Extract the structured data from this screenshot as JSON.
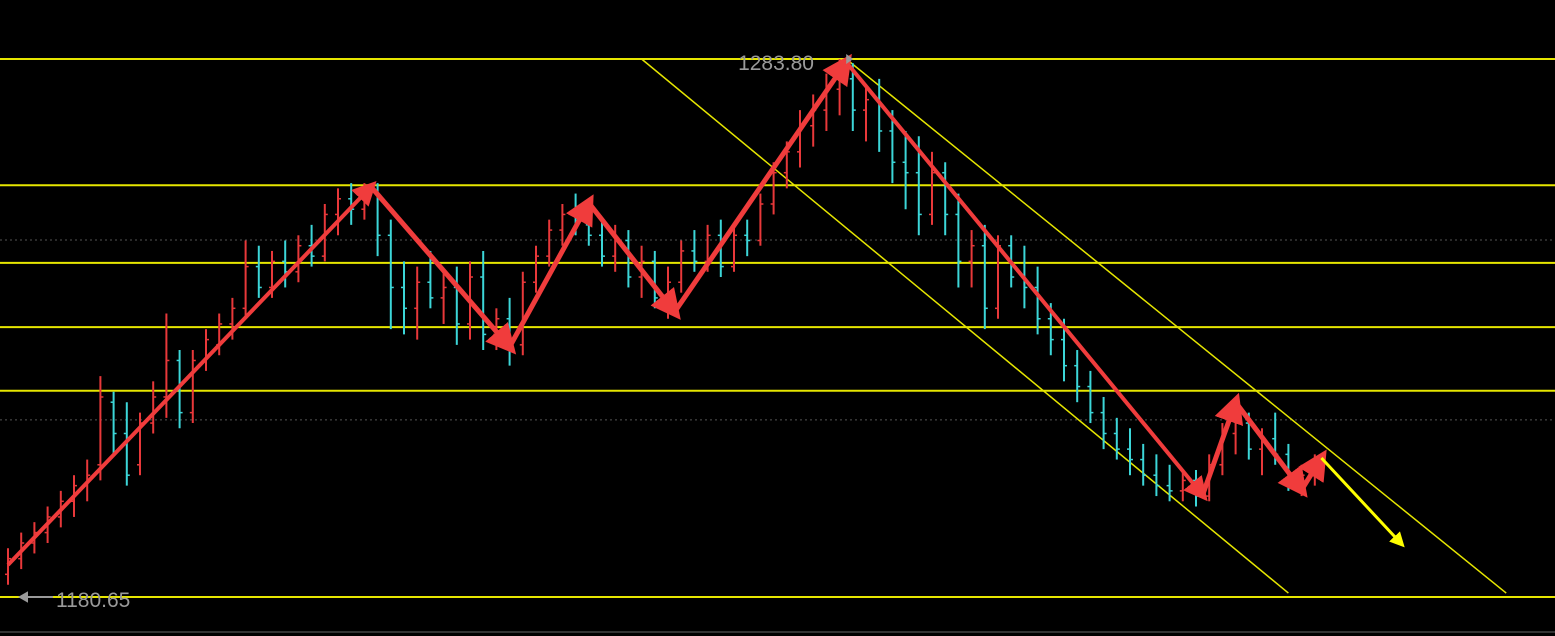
{
  "chart_data": {
    "type": "ohlc",
    "title": "",
    "xlabel": "",
    "ylabel": "",
    "ylim": [
      1180.65,
      1283.8
    ],
    "grid": false,
    "colors": {
      "background": "#000000",
      "up": "#e8383a",
      "down": "#3cd6d8",
      "levels": "#e6e600",
      "channel": "#e6e600",
      "zigzag": "#f03c3c",
      "projection": "#ffff00",
      "label": "#9a9a9a",
      "dotted": "#555555"
    },
    "price_labels": [
      {
        "text": "1283.80",
        "price": 1283.8,
        "bar": 127
      },
      {
        "text": "1180.65",
        "price": 1180.65,
        "bar": 0
      }
    ],
    "horizontal_levels": [
      1283.8,
      1259.6,
      1244.7,
      1232.4,
      1220.2,
      1180.65
    ],
    "dotted_levels": [
      1249.1,
      1214.6
    ],
    "channel_lines": [
      {
        "from": [
          127,
          1283.8
        ],
        "to": [
          227,
          1181.4
        ]
      },
      {
        "from": [
          96,
          1283.8
        ],
        "to": [
          194,
          1181.4
        ]
      }
    ],
    "zigzag": [
      [
        0,
        1186.8
      ],
      [
        55,
        1259.3
      ],
      [
        76,
        1228.6
      ],
      [
        88,
        1256.2
      ],
      [
        101,
        1235.3
      ],
      [
        127,
        1283.2
      ],
      [
        181,
        1200.2
      ],
      [
        186,
        1218.0
      ],
      [
        196,
        1201.2
      ],
      [
        199,
        1207.3
      ]
    ],
    "projection": {
      "from": [
        199,
        1207.3
      ],
      "to": [
        211,
        1191.0
      ]
    },
    "bars": [
      [
        0,
        1185,
        1190,
        1183,
        1188
      ],
      [
        2,
        1188,
        1193,
        1186,
        1191
      ],
      [
        4,
        1191,
        1195,
        1189,
        1193
      ],
      [
        6,
        1193,
        1198,
        1191,
        1196
      ],
      [
        8,
        1196,
        1201,
        1194,
        1199
      ],
      [
        10,
        1199,
        1204,
        1196,
        1202
      ],
      [
        12,
        1202,
        1207,
        1199,
        1204
      ],
      [
        14,
        1206,
        1223,
        1203,
        1219
      ],
      [
        16,
        1218,
        1220,
        1208,
        1212
      ],
      [
        18,
        1212,
        1218,
        1202,
        1204
      ],
      [
        20,
        1206,
        1216,
        1204,
        1214
      ],
      [
        22,
        1214,
        1222,
        1212,
        1219
      ],
      [
        24,
        1219,
        1235,
        1215,
        1226
      ],
      [
        26,
        1226,
        1228,
        1213,
        1216
      ],
      [
        28,
        1216,
        1228,
        1214,
        1226
      ],
      [
        30,
        1226,
        1232,
        1224,
        1230
      ],
      [
        32,
        1229,
        1235,
        1227,
        1233
      ],
      [
        34,
        1233,
        1238,
        1230,
        1236
      ],
      [
        36,
        1236,
        1249,
        1234,
        1244
      ],
      [
        38,
        1244,
        1248,
        1238,
        1240
      ],
      [
        40,
        1240,
        1247,
        1238,
        1245
      ],
      [
        42,
        1245,
        1249,
        1240,
        1243
      ],
      [
        44,
        1243,
        1250,
        1241,
        1248
      ],
      [
        46,
        1248,
        1252,
        1244,
        1246
      ],
      [
        48,
        1246,
        1256,
        1245,
        1254
      ],
      [
        50,
        1254,
        1259,
        1250,
        1257
      ],
      [
        52,
        1257,
        1260,
        1252,
        1255
      ],
      [
        54,
        1255,
        1260,
        1253,
        1258
      ],
      [
        56,
        1258,
        1260,
        1246,
        1250
      ],
      [
        58,
        1250,
        1253,
        1232,
        1240
      ],
      [
        60,
        1240,
        1245,
        1231,
        1236
      ],
      [
        62,
        1236,
        1244,
        1230,
        1241
      ],
      [
        64,
        1241,
        1247,
        1236,
        1238
      ],
      [
        66,
        1238,
        1243,
        1233,
        1240
      ],
      [
        68,
        1240,
        1244,
        1229,
        1233
      ],
      [
        70,
        1233,
        1245,
        1230,
        1242
      ],
      [
        72,
        1242,
        1247,
        1228,
        1231
      ],
      [
        74,
        1231,
        1236,
        1228,
        1234
      ],
      [
        76,
        1234,
        1238,
        1225,
        1229
      ],
      [
        78,
        1229,
        1243,
        1227,
        1241
      ],
      [
        80,
        1241,
        1248,
        1239,
        1246
      ],
      [
        82,
        1246,
        1253,
        1244,
        1251
      ],
      [
        84,
        1251,
        1256,
        1248,
        1254
      ],
      [
        86,
        1254,
        1258,
        1250,
        1252
      ],
      [
        88,
        1252,
        1257,
        1248,
        1250
      ],
      [
        90,
        1250,
        1253,
        1244,
        1246
      ],
      [
        92,
        1246,
        1252,
        1243,
        1249
      ],
      [
        94,
        1249,
        1251,
        1240,
        1242
      ],
      [
        96,
        1242,
        1248,
        1238,
        1245
      ],
      [
        98,
        1245,
        1247,
        1236,
        1238
      ],
      [
        100,
        1238,
        1244,
        1234,
        1241
      ],
      [
        102,
        1241,
        1249,
        1239,
        1247
      ],
      [
        104,
        1247,
        1251,
        1243,
        1245
      ],
      [
        106,
        1245,
        1252,
        1243,
        1250
      ],
      [
        108,
        1250,
        1253,
        1242,
        1244
      ],
      [
        110,
        1244,
        1252,
        1243,
        1250
      ],
      [
        112,
        1250,
        1253,
        1246,
        1249
      ],
      [
        114,
        1249,
        1258,
        1248,
        1256
      ],
      [
        116,
        1256,
        1264,
        1254,
        1262
      ],
      [
        118,
        1262,
        1268,
        1259,
        1266
      ],
      [
        120,
        1266,
        1274,
        1263,
        1271
      ],
      [
        122,
        1271,
        1277,
        1267,
        1274
      ],
      [
        124,
        1274,
        1281,
        1270,
        1278
      ],
      [
        126,
        1278,
        1283.8,
        1273,
        1280
      ],
      [
        128,
        1280,
        1283,
        1270,
        1274
      ],
      [
        130,
        1274,
        1279,
        1268,
        1276
      ],
      [
        132,
        1276,
        1280,
        1266,
        1270
      ],
      [
        134,
        1270,
        1274,
        1260,
        1264
      ],
      [
        136,
        1264,
        1270,
        1255,
        1262
      ],
      [
        138,
        1262,
        1269,
        1250,
        1254
      ],
      [
        140,
        1254,
        1266,
        1252,
        1262
      ],
      [
        142,
        1262,
        1264,
        1250,
        1254
      ],
      [
        144,
        1254,
        1258,
        1240,
        1245
      ],
      [
        146,
        1245,
        1251,
        1240,
        1248
      ],
      [
        148,
        1248,
        1252,
        1232,
        1236
      ],
      [
        150,
        1236,
        1250,
        1234,
        1248
      ],
      [
        152,
        1248,
        1250,
        1240,
        1242
      ],
      [
        154,
        1242,
        1248,
        1236,
        1240
      ],
      [
        156,
        1240,
        1244,
        1231,
        1234
      ],
      [
        158,
        1234,
        1237,
        1227,
        1230
      ],
      [
        160,
        1230,
        1234,
        1222,
        1225
      ],
      [
        162,
        1225,
        1228,
        1218,
        1221
      ],
      [
        164,
        1221,
        1224,
        1214,
        1216
      ],
      [
        166,
        1216,
        1219,
        1209,
        1212
      ],
      [
        168,
        1212,
        1215,
        1207,
        1209
      ],
      [
        170,
        1209,
        1213,
        1204,
        1207
      ],
      [
        172,
        1207,
        1210,
        1202,
        1204
      ],
      [
        174,
        1204,
        1208,
        1200,
        1202
      ],
      [
        176,
        1202,
        1206,
        1199,
        1201
      ],
      [
        178,
        1201,
        1205,
        1199,
        1203
      ],
      [
        180,
        1203,
        1205,
        1198,
        1200
      ],
      [
        182,
        1200,
        1208,
        1199,
        1206
      ],
      [
        184,
        1206,
        1214,
        1204,
        1212
      ],
      [
        186,
        1212,
        1218,
        1208,
        1214
      ],
      [
        188,
        1214,
        1216,
        1207,
        1209
      ],
      [
        190,
        1209,
        1213,
        1204,
        1211
      ],
      [
        192,
        1211,
        1216,
        1206,
        1208
      ],
      [
        194,
        1208,
        1210,
        1201,
        1203
      ],
      [
        196,
        1203,
        1206,
        1200,
        1204
      ],
      [
        198,
        1204,
        1208,
        1202,
        1207
      ]
    ]
  }
}
